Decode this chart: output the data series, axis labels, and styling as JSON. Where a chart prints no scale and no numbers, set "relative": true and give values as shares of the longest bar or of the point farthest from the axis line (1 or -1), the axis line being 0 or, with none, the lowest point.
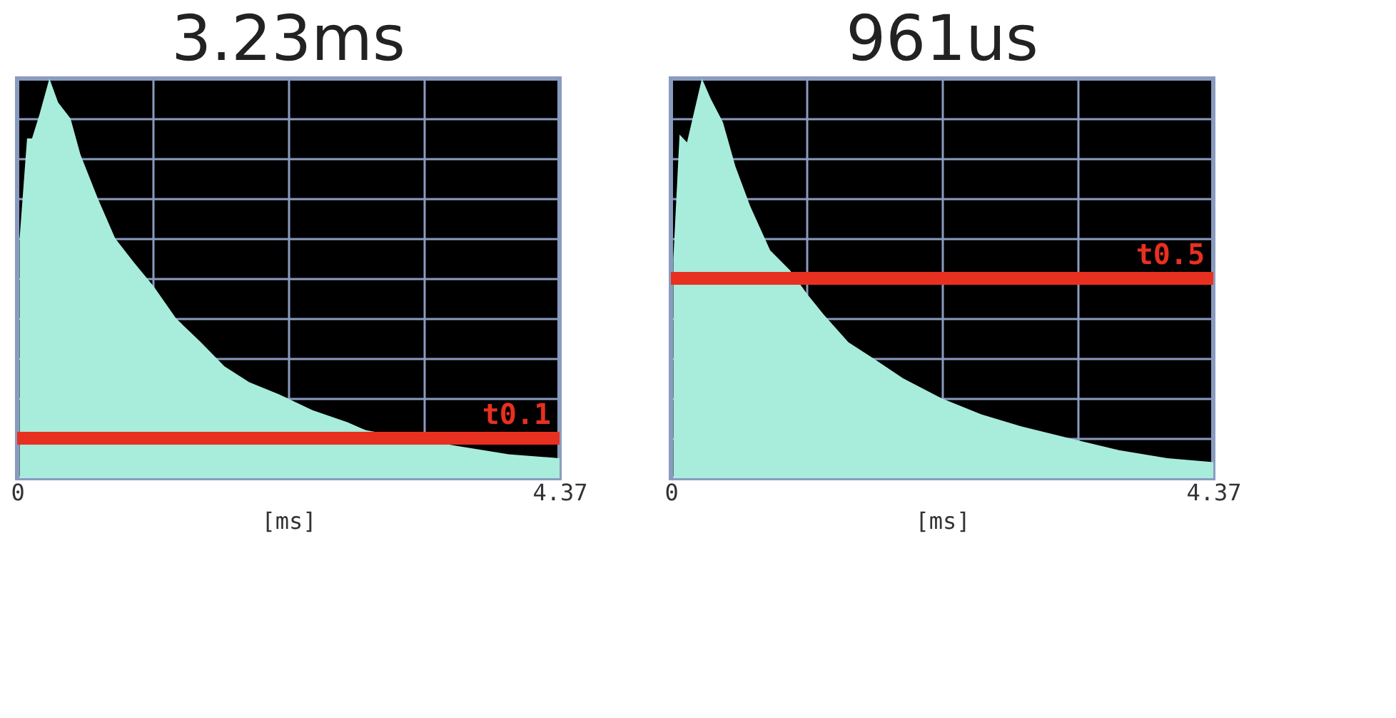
{
  "chart_data": [
    {
      "type": "area",
      "title": "3.23ms",
      "xlabel": "[ms]",
      "relative": true,
      "grid": true,
      "xlim": [
        0,
        4.37
      ],
      "xticks": [
        0,
        {
          "value": 1.09,
          "label": null
        },
        {
          "value": 2.19,
          "label": null
        },
        {
          "value": 3.28,
          "label": null
        },
        4.37
      ],
      "series": [
        {
          "color": "#a8ecdc",
          "x": [
            0.02,
            0.08,
            0.12,
            0.18,
            0.26,
            0.33,
            0.43,
            0.51,
            0.65,
            0.79,
            0.94,
            1.1,
            1.28,
            1.48,
            1.67,
            1.87,
            2.11,
            2.38,
            2.66,
            2.81,
            3.17,
            3.56,
            3.96,
            4.37
          ],
          "values": [
            0.6,
            0.85,
            0.85,
            0.91,
            1.0,
            0.94,
            0.9,
            0.81,
            0.7,
            0.6,
            0.54,
            0.48,
            0.4,
            0.34,
            0.28,
            0.24,
            0.21,
            0.17,
            0.14,
            0.12,
            0.1,
            0.08,
            0.06,
            0.05
          ]
        }
      ],
      "ref_lines": [
        {
          "axis": "y",
          "value": 0.1,
          "label": "t0.1",
          "color": "#e83020"
        }
      ]
    },
    {
      "type": "area",
      "title": "961us",
      "xlabel": "[ms]",
      "relative": true,
      "grid": true,
      "xlim": [
        0,
        4.37
      ],
      "xticks": [
        0,
        {
          "value": 1.09,
          "label": null
        },
        {
          "value": 2.19,
          "label": null
        },
        {
          "value": 3.28,
          "label": null
        },
        4.37
      ],
      "series": [
        {
          "color": "#a8ecdc",
          "x": [
            0.02,
            0.07,
            0.13,
            0.19,
            0.25,
            0.32,
            0.42,
            0.52,
            0.64,
            0.8,
            0.96,
            1.1,
            1.23,
            1.43,
            1.63,
            1.87,
            2.18,
            2.5,
            2.82,
            3.21,
            3.61,
            4.0,
            4.37
          ],
          "values": [
            0.55,
            0.86,
            0.84,
            0.92,
            1.0,
            0.95,
            0.89,
            0.78,
            0.68,
            0.57,
            0.52,
            0.46,
            0.41,
            0.34,
            0.3,
            0.25,
            0.2,
            0.16,
            0.13,
            0.1,
            0.07,
            0.05,
            0.04
          ]
        }
      ],
      "ref_lines": [
        {
          "axis": "y",
          "value": 0.5,
          "label": "t0.5",
          "color": "#e83020"
        }
      ]
    }
  ]
}
